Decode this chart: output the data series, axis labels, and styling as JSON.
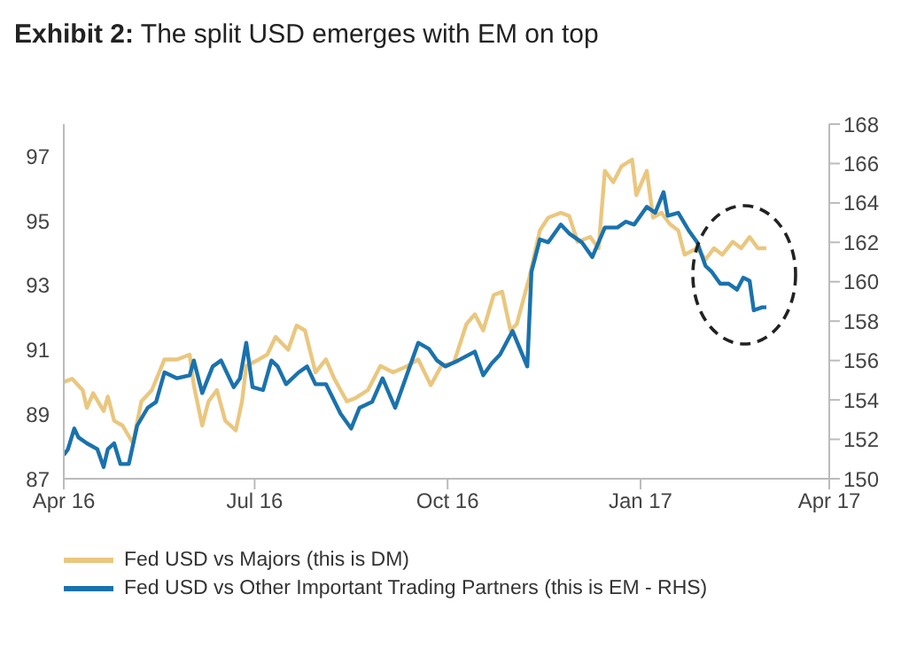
{
  "chart_data": {
    "type": "line",
    "title": "Exhibit 2:  The split USD emerges with EM on top",
    "xlim": [
      "2016-04-01",
      "2017-04-01"
    ],
    "xticks": [
      {
        "value": "2016-04-01",
        "label": "Apr 16"
      },
      {
        "value": "2016-07-01",
        "label": "Jul 16"
      },
      {
        "value": "2016-10-01",
        "label": "Oct 16"
      },
      {
        "value": "2017-01-01",
        "label": "Jan 17"
      },
      {
        "value": "2017-04-01",
        "label": "Apr 17"
      }
    ],
    "ylim": [
      87,
      98
    ],
    "yticks": [
      87,
      89,
      91,
      93,
      95,
      97
    ],
    "y2lim": [
      150,
      168
    ],
    "y2ticks": [
      150,
      152,
      154,
      156,
      158,
      160,
      162,
      164,
      166,
      168
    ],
    "grid": false,
    "legend": "bottom",
    "marker": "none",
    "line_style": "solid",
    "series": [
      {
        "name": "Fed USD vs Majors (this is DM)",
        "color": "#eac77f",
        "x": [
          "2016-04-01",
          "2016-04-05",
          "2016-04-10",
          "2016-04-12",
          "2016-04-15",
          "2016-04-20",
          "2016-04-22",
          "2016-04-25",
          "2016-04-29",
          "2016-05-04",
          "2016-05-08",
          "2016-05-13",
          "2016-05-19",
          "2016-05-25",
          "2016-05-31",
          "2016-06-02",
          "2016-06-06",
          "2016-06-09",
          "2016-06-13",
          "2016-06-17",
          "2016-06-22",
          "2016-06-25",
          "2016-06-27",
          "2016-07-03",
          "2016-07-07",
          "2016-07-11",
          "2016-07-17",
          "2016-07-21",
          "2016-07-25",
          "2016-07-30",
          "2016-08-04",
          "2016-08-08",
          "2016-08-14",
          "2016-08-18",
          "2016-08-24",
          "2016-08-30",
          "2016-09-05",
          "2016-09-12",
          "2016-09-17",
          "2016-09-23",
          "2016-09-28",
          "2016-10-04",
          "2016-10-10",
          "2016-10-14",
          "2016-10-18",
          "2016-10-23",
          "2016-10-27",
          "2016-10-31",
          "2016-11-03",
          "2016-11-09",
          "2016-11-14",
          "2016-11-18",
          "2016-11-24",
          "2016-11-28",
          "2016-12-02",
          "2016-12-08",
          "2016-12-12",
          "2016-12-15",
          "2016-12-19",
          "2016-12-23",
          "2016-12-28",
          "2016-12-30",
          "2017-01-04",
          "2017-01-07",
          "2017-01-11",
          "2017-01-15",
          "2017-01-19",
          "2017-01-22",
          "2017-01-28",
          "2017-02-01",
          "2017-02-05",
          "2017-02-09",
          "2017-02-14",
          "2017-02-18",
          "2017-02-22",
          "2017-02-26",
          "2017-03-02"
        ],
        "values": [
          90.0,
          90.1,
          89.75,
          89.2,
          89.65,
          89.1,
          89.55,
          88.8,
          88.65,
          88.1,
          89.4,
          89.75,
          90.7,
          90.7,
          90.85,
          89.9,
          88.65,
          89.4,
          89.75,
          88.8,
          88.5,
          89.4,
          90.5,
          90.7,
          90.85,
          91.4,
          91.0,
          91.75,
          91.6,
          90.3,
          90.7,
          90.1,
          89.4,
          89.5,
          89.75,
          90.5,
          90.3,
          90.5,
          90.7,
          89.9,
          90.5,
          90.6,
          91.8,
          92.1,
          91.6,
          92.7,
          92.8,
          91.6,
          91.8,
          93.25,
          94.7,
          95.1,
          95.25,
          95.15,
          94.35,
          94.5,
          94.15,
          96.55,
          96.2,
          96.7,
          96.9,
          95.8,
          96.55,
          95.1,
          95.25,
          94.9,
          94.7,
          93.95,
          94.15,
          93.8,
          94.15,
          93.95,
          94.35,
          94.15,
          94.5,
          94.15,
          94.15
        ]
      },
      {
        "name": "Fed USD vs Other Important Trading Partners (this is EM - RHS)",
        "color": "#1a72ad",
        "axis": "y2",
        "x": [
          "2016-04-01",
          "2016-04-03",
          "2016-04-06",
          "2016-04-08",
          "2016-04-12",
          "2016-04-17",
          "2016-04-20",
          "2016-04-22",
          "2016-04-25",
          "2016-04-28",
          "2016-05-02",
          "2016-05-06",
          "2016-05-11",
          "2016-05-15",
          "2016-05-19",
          "2016-05-25",
          "2016-05-31",
          "2016-06-02",
          "2016-06-06",
          "2016-06-11",
          "2016-06-15",
          "2016-06-21",
          "2016-06-24",
          "2016-06-27",
          "2016-06-30",
          "2016-07-05",
          "2016-07-09",
          "2016-07-12",
          "2016-07-16",
          "2016-07-22",
          "2016-07-26",
          "2016-07-30",
          "2016-08-04",
          "2016-08-11",
          "2016-08-16",
          "2016-08-20",
          "2016-08-26",
          "2016-08-31",
          "2016-09-06",
          "2016-09-12",
          "2016-09-17",
          "2016-09-22",
          "2016-09-26",
          "2016-09-30",
          "2016-10-06",
          "2016-10-14",
          "2016-10-18",
          "2016-10-22",
          "2016-10-26",
          "2016-11-01",
          "2016-11-08",
          "2016-11-10",
          "2016-11-14",
          "2016-11-18",
          "2016-11-24",
          "2016-11-28",
          "2016-12-04",
          "2016-12-09",
          "2016-12-15",
          "2016-12-21",
          "2016-12-25",
          "2016-12-29",
          "2017-01-04",
          "2017-01-08",
          "2017-01-12",
          "2017-01-14",
          "2017-01-19",
          "2017-01-24",
          "2017-01-28",
          "2017-02-01",
          "2017-02-04",
          "2017-02-08",
          "2017-02-12",
          "2017-02-16",
          "2017-02-19",
          "2017-02-22",
          "2017-02-24",
          "2017-02-28",
          "2017-03-02"
        ],
        "values": [
          151.2,
          151.5,
          152.55,
          152.1,
          151.8,
          151.5,
          150.6,
          151.5,
          151.8,
          150.75,
          150.75,
          152.7,
          153.6,
          153.9,
          155.4,
          155.1,
          155.25,
          156.0,
          154.35,
          155.7,
          156.0,
          154.65,
          155.1,
          156.9,
          154.65,
          154.5,
          156.0,
          155.7,
          154.8,
          155.4,
          155.7,
          154.8,
          154.8,
          153.3,
          152.55,
          153.6,
          153.9,
          155.1,
          153.6,
          155.4,
          156.9,
          156.6,
          156.0,
          155.7,
          156.0,
          156.45,
          155.25,
          155.85,
          156.3,
          157.5,
          155.7,
          160.5,
          162.15,
          162.0,
          162.9,
          162.45,
          162.0,
          161.25,
          162.75,
          162.75,
          163.05,
          162.9,
          163.8,
          163.5,
          164.55,
          163.35,
          163.5,
          162.6,
          162.0,
          160.8,
          160.5,
          159.9,
          159.9,
          159.6,
          160.2,
          160.05,
          158.55,
          158.7,
          158.7
        ]
      }
    ]
  }
}
